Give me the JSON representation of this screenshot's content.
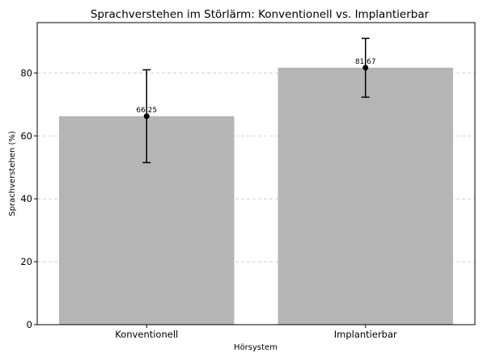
{
  "chart_data": {
    "type": "bar",
    "title": "Sprachverstehen im Störlärm: Konventionell vs. Implantierbar",
    "xlabel": "Hörsystem",
    "ylabel": "Sprachverstehen (%)",
    "categories": [
      "Konventionell",
      "Implantierbar"
    ],
    "values": [
      66.25,
      81.67
    ],
    "value_labels": [
      "66.25",
      "81.67"
    ],
    "error_low": [
      51.5,
      72.3
    ],
    "error_high": [
      81.0,
      91.0
    ],
    "ylim": [
      0,
      96
    ],
    "yticks": [
      0,
      20,
      40,
      60,
      80
    ],
    "ytick_labels": [
      "0",
      "20",
      "40",
      "60",
      "80"
    ],
    "grid": "y, dashed",
    "bar_color": "#b5b5b5"
  }
}
